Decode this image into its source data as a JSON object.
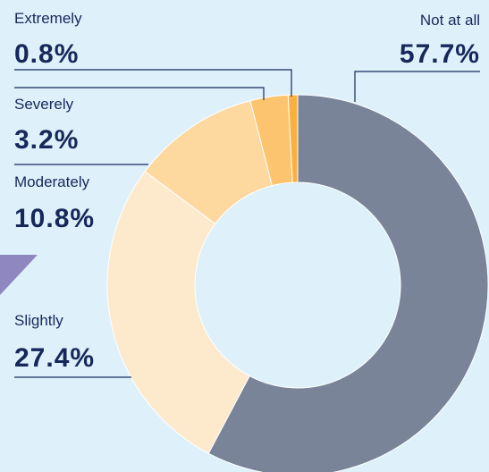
{
  "chart_data": {
    "type": "donut",
    "categories": [
      "Not at all",
      "Slightly",
      "Moderately",
      "Severely",
      "Extremely"
    ],
    "values": [
      57.7,
      27.4,
      10.8,
      3.2,
      0.8
    ],
    "value_labels": [
      "57.7%",
      "27.4%",
      "10.8%",
      "3.2%",
      "0.8%"
    ],
    "colors": [
      "#7a8499",
      "#fde9cb",
      "#fdd89f",
      "#fdc46f",
      "#f8b13f"
    ]
  }
}
